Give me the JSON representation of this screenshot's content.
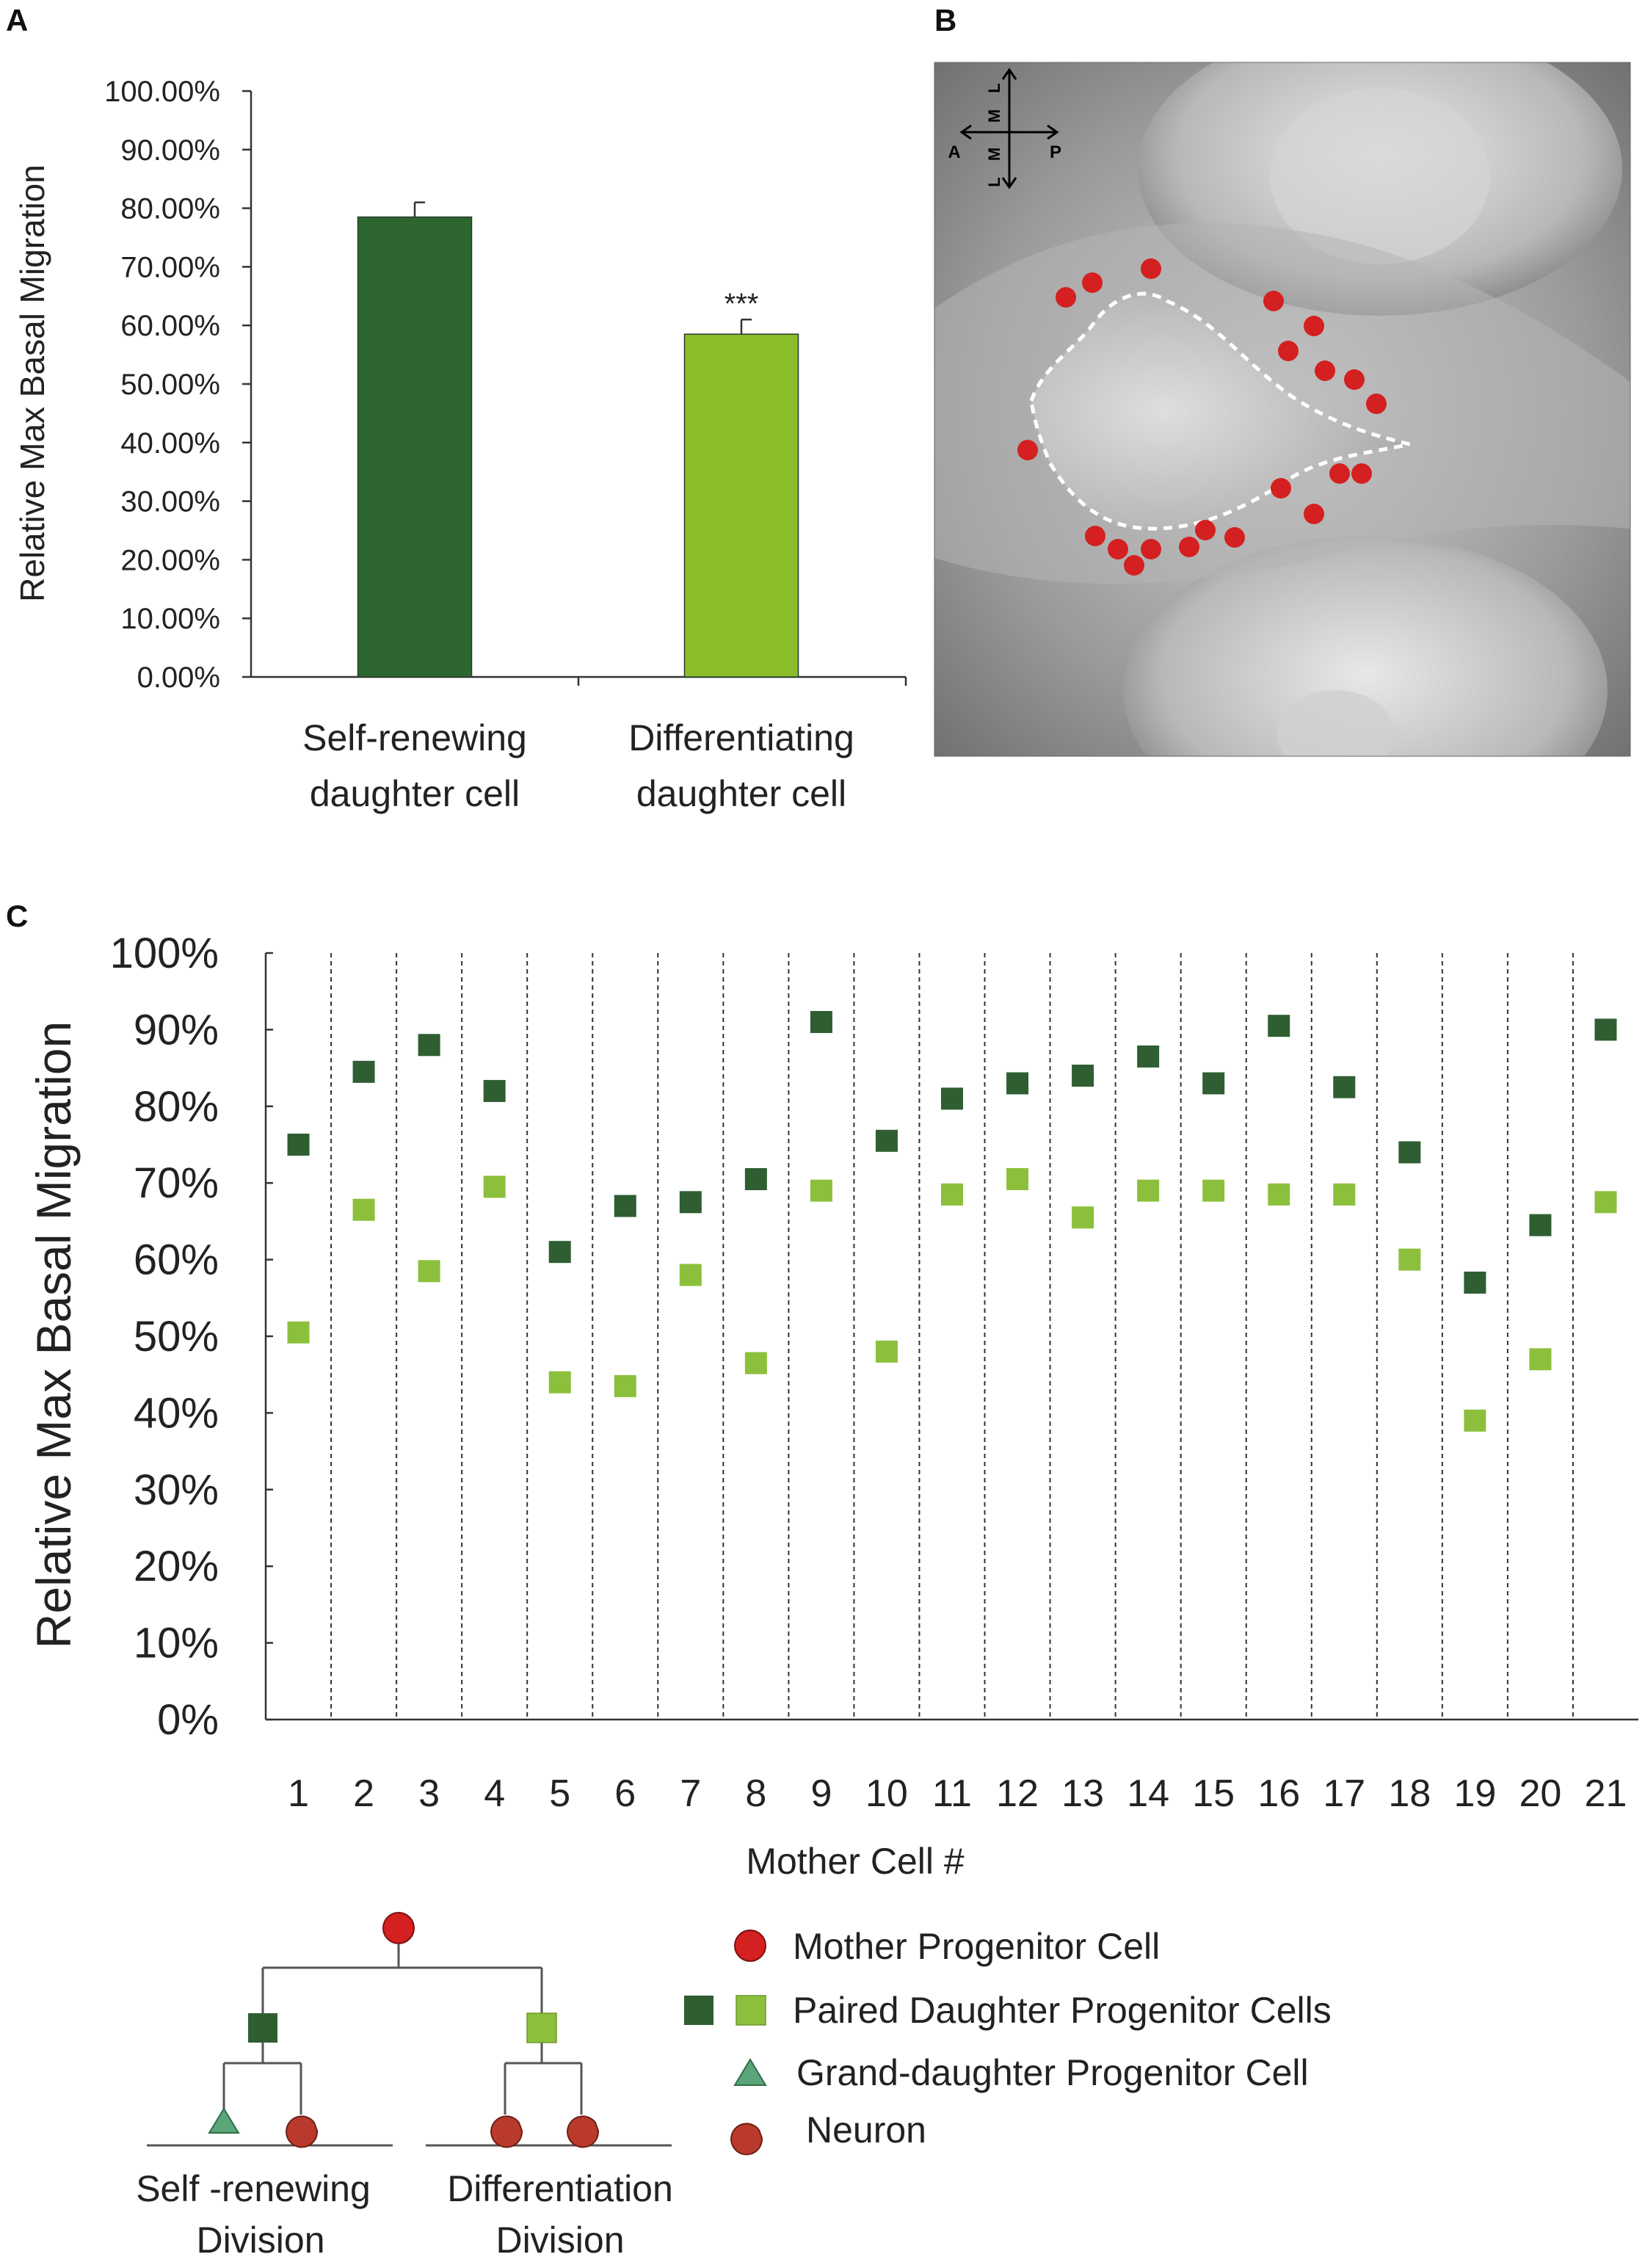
{
  "panels": {
    "a": "A",
    "b": "B",
    "c": "C"
  },
  "colors": {
    "dark_green": "#2e6630",
    "light_green": "#8bbd2a",
    "marker_dark": "#2e5e31",
    "marker_light": "#8cc03c",
    "red": "#d42020",
    "neuron": "#b93a2c",
    "triangle": "#5aa57a"
  },
  "chart_data": [
    {
      "type": "bar",
      "panel": "A",
      "categories": [
        "Self-renewing daughter cell",
        "Differentiating daughter cell"
      ],
      "category_lines": [
        [
          "Self-renewing",
          "daughter cell"
        ],
        [
          "Differentiating",
          "daughter cell"
        ]
      ],
      "values": [
        78.5,
        58.5
      ],
      "errors": [
        2.5,
        2.5
      ],
      "annotations": [
        "",
        "***"
      ],
      "ylabel": "Relative Max Basal Migration",
      "ylim": [
        0,
        100
      ],
      "yticks": [
        "0.00%",
        "10.00%",
        "20.00%",
        "30.00%",
        "40.00%",
        "50.00%",
        "60.00%",
        "70.00%",
        "80.00%",
        "90.00%",
        "100.00%"
      ],
      "grid": false
    },
    {
      "type": "scatter",
      "panel": "C",
      "categories": [
        "1",
        "2",
        "3",
        "4",
        "5",
        "6",
        "7",
        "8",
        "9",
        "10",
        "11",
        "12",
        "13",
        "14",
        "15",
        "16",
        "17",
        "18",
        "19",
        "20",
        "21"
      ],
      "series": [
        {
          "values": [
            75,
            84.5,
            88,
            82,
            61,
            67,
            67.5,
            70.5,
            91,
            75.5,
            81,
            83,
            84,
            86.5,
            83,
            90.5,
            82.5,
            74,
            57,
            64.5,
            90
          ]
        },
        {
          "values": [
            50.5,
            66.5,
            58.5,
            69.5,
            44,
            43.5,
            58,
            46.5,
            69,
            48,
            68.5,
            70.5,
            65.5,
            69,
            69,
            68.5,
            68.5,
            60,
            39,
            47,
            67.5
          ]
        }
      ],
      "xlabel": "Mother Cell #",
      "ylabel": "Relative Max Basal Migration",
      "ylim": [
        0,
        100
      ],
      "yticks": [
        "0%",
        "10%",
        "20%",
        "30%",
        "40%",
        "50%",
        "60%",
        "70%",
        "80%",
        "90%",
        "100%"
      ],
      "grid": "vertical dashed separators"
    }
  ],
  "image_b": {
    "axis_labels": {
      "anterior": "A",
      "posterior": "P",
      "l_top": "L",
      "m_top": "M",
      "m_bottom": "M",
      "l_bottom": "L"
    }
  },
  "legend": {
    "mother": "Mother Progenitor Cell",
    "paired": "Paired Daughter Progenitor Cells",
    "grand": "Grand-daughter Progenitor Cell",
    "neuron": "Neuron"
  },
  "lineage": {
    "left": [
      "Self -renewing",
      "Division"
    ],
    "right": [
      "Differentiation",
      "Division"
    ]
  }
}
